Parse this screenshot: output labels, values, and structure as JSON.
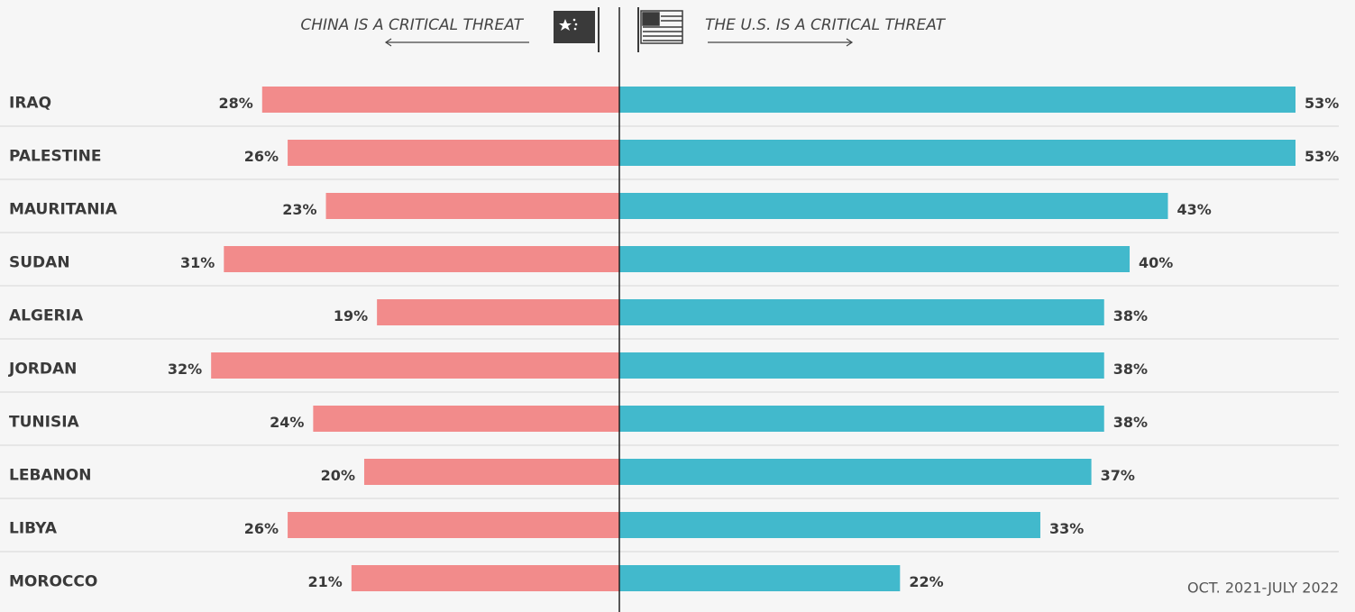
{
  "chart_data": {
    "type": "diverging_bar",
    "categories": [
      "IRAQ",
      "PALESTINE",
      "MAURITANIA",
      "SUDAN",
      "ALGERIA",
      "JORDAN",
      "TUNISIA",
      "LEBANON",
      "LIBYA",
      "MOROCCO"
    ],
    "series": [
      {
        "name": "CHINA IS A CRITICAL THREAT",
        "color": "#f28b8b",
        "values": [
          28,
          26,
          23,
          31,
          19,
          32,
          24,
          20,
          26,
          21
        ],
        "value_labels": [
          "28%",
          "26%",
          "23%",
          "31%",
          "19%",
          "32%",
          "24%",
          "20%",
          "26%",
          "21%"
        ]
      },
      {
        "name": "THE U.S. IS A CRITICAL THREAT",
        "color": "#42b9cc",
        "values": [
          53,
          53,
          43,
          40,
          38,
          38,
          38,
          37,
          33,
          22
        ],
        "value_labels": [
          "53%",
          "53%",
          "43%",
          "40%",
          "38%",
          "38%",
          "38%",
          "37%",
          "33%",
          "22%"
        ]
      }
    ],
    "note": "OCT. 2021-JULY 2022"
  }
}
